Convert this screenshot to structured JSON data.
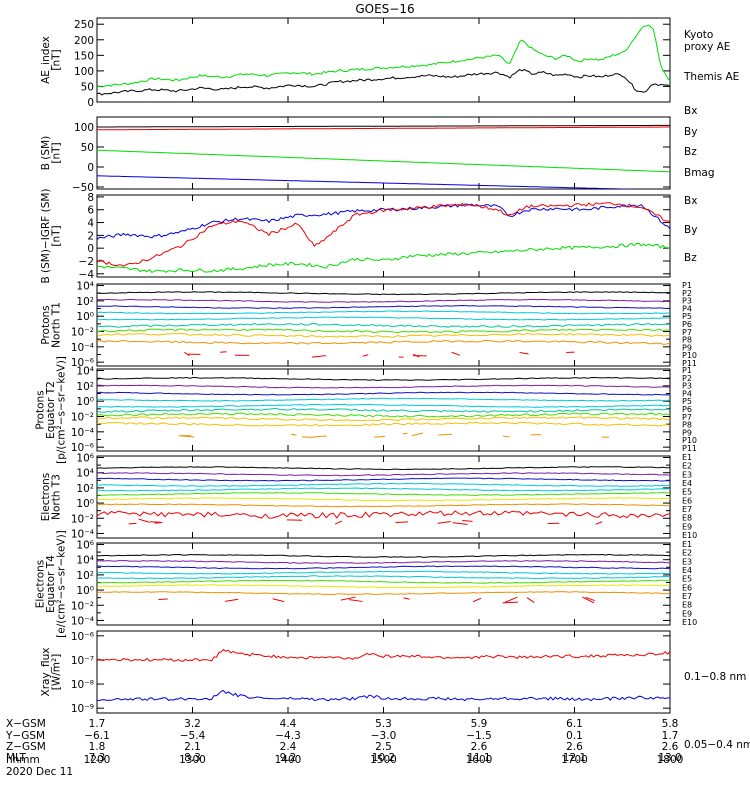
{
  "title": "GOES−16",
  "date_label": "2020 Dec 11",
  "colors": {
    "black": "#000000",
    "red": "#ee0000",
    "green": "#00dd00",
    "blue": "#0000dd",
    "purple": "#7a1fa2",
    "navy": "#1010c8",
    "cyan": "#00c8d8",
    "teal": "#00c8a0",
    "lime": "#44dd00",
    "yellow": "#e8e800",
    "gold": "#f4c000",
    "orange": "#f09000",
    "darkorange": "#e06000"
  },
  "chart_data": [
    {
      "type": "line",
      "id": "ae",
      "ylabel": [
        "AE_index",
        "[nT]"
      ],
      "yscale": "linear",
      "ylim": [
        0,
        270
      ],
      "yticks": [
        0,
        50,
        100,
        150,
        200,
        250
      ],
      "ytick_labels": [
        "0",
        "50",
        "100",
        "150",
        "200",
        "250"
      ],
      "series": [
        {
          "name": "Kyoto proxy AE",
          "label_lines": [
            "Kyoto",
            "proxy AE"
          ],
          "color": "#00dd00",
          "x": [
            0,
            0.03,
            0.06,
            0.1,
            0.14,
            0.18,
            0.22,
            0.26,
            0.3,
            0.34,
            0.38,
            0.42,
            0.46,
            0.5,
            0.54,
            0.58,
            0.62,
            0.66,
            0.7,
            0.72,
            0.74,
            0.76,
            0.78,
            0.8,
            0.82,
            0.84,
            0.86,
            0.88,
            0.9,
            0.92,
            0.94,
            0.955,
            0.97,
            0.985,
            1.0
          ],
          "y": [
            50,
            55,
            60,
            75,
            70,
            85,
            80,
            90,
            85,
            95,
            90,
            100,
            105,
            110,
            115,
            120,
            130,
            140,
            150,
            120,
            200,
            170,
            150,
            140,
            150,
            130,
            140,
            135,
            150,
            160,
            210,
            250,
            240,
            110,
            70
          ]
        },
        {
          "name": "Themis AE",
          "label_lines": [
            "Themis AE"
          ],
          "color": "#000000",
          "x": [
            0,
            0.03,
            0.06,
            0.1,
            0.14,
            0.18,
            0.22,
            0.26,
            0.3,
            0.34,
            0.38,
            0.42,
            0.46,
            0.5,
            0.54,
            0.58,
            0.62,
            0.66,
            0.7,
            0.72,
            0.74,
            0.76,
            0.78,
            0.8,
            0.82,
            0.84,
            0.86,
            0.88,
            0.9,
            0.92,
            0.94,
            0.955,
            0.97,
            0.985,
            1.0
          ],
          "y": [
            25,
            30,
            35,
            40,
            35,
            45,
            40,
            50,
            45,
            55,
            50,
            65,
            70,
            75,
            80,
            85,
            80,
            90,
            95,
            80,
            105,
            90,
            95,
            85,
            90,
            80,
            85,
            80,
            90,
            85,
            40,
            30,
            60,
            55,
            50
          ]
        }
      ]
    },
    {
      "type": "line",
      "id": "bsm",
      "ylabel": [
        "B (SM)",
        "[nT]"
      ],
      "yscale": "linear",
      "ylim": [
        -55,
        125
      ],
      "yticks": [
        -50,
        0,
        50,
        100
      ],
      "ytick_labels": [
        "−50",
        "0",
        "50",
        "100"
      ],
      "series": [
        {
          "name": "Bx",
          "color": "#0000dd",
          "x": [
            0,
            1
          ],
          "y": [
            -22,
            -58
          ]
        },
        {
          "name": "By",
          "color": "#00dd00",
          "x": [
            0,
            1
          ],
          "y": [
            42,
            -12
          ]
        },
        {
          "name": "Bz",
          "color": "#ee0000",
          "x": [
            0,
            1
          ],
          "y": [
            93,
            100
          ]
        },
        {
          "name": "Bmag",
          "color": "#000000",
          "x": [
            0,
            1
          ],
          "y": [
            100,
            104
          ]
        }
      ]
    },
    {
      "type": "line",
      "id": "bdiff",
      "ylabel": [
        "B (SM)−IGRF (SM)",
        "[nT]"
      ],
      "yscale": "linear",
      "ylim": [
        -4.5,
        8.3
      ],
      "yticks": [
        -4,
        -2,
        0,
        2,
        4,
        6,
        8
      ],
      "ytick_labels": [
        "−4",
        "−2",
        "0",
        "2",
        "4",
        "6",
        "8"
      ],
      "series": [
        {
          "name": "Bx",
          "color": "#0000dd",
          "x": [
            0,
            0.05,
            0.1,
            0.15,
            0.2,
            0.25,
            0.3,
            0.35,
            0.4,
            0.45,
            0.5,
            0.55,
            0.6,
            0.65,
            0.7,
            0.72,
            0.75,
            0.8,
            0.85,
            0.9,
            0.95,
            1.0
          ],
          "y": [
            1.5,
            2.2,
            1.8,
            2.6,
            4.0,
            4.6,
            4.2,
            5.1,
            5.3,
            5.8,
            6.0,
            6.2,
            6.5,
            6.8,
            6.5,
            5.0,
            6.0,
            6.2,
            6.0,
            6.5,
            6.8,
            3.0
          ]
        },
        {
          "name": "By",
          "color": "#00dd00",
          "x": [
            0,
            0.05,
            0.1,
            0.15,
            0.2,
            0.25,
            0.3,
            0.35,
            0.4,
            0.45,
            0.5,
            0.55,
            0.6,
            0.65,
            0.7,
            0.75,
            0.8,
            0.85,
            0.9,
            0.95,
            1.0
          ],
          "y": [
            -2.8,
            -3.2,
            -3.6,
            -3.4,
            -3.5,
            -3.2,
            -2.6,
            -2.4,
            -2.9,
            -1.7,
            -1.9,
            -1.2,
            -1.0,
            -0.8,
            -0.6,
            -0.3,
            0.0,
            0.1,
            0.3,
            0.6,
            0.1
          ]
        },
        {
          "name": "Bz",
          "color": "#ee0000",
          "x": [
            0,
            0.05,
            0.1,
            0.15,
            0.2,
            0.25,
            0.3,
            0.35,
            0.38,
            0.42,
            0.45,
            0.5,
            0.55,
            0.6,
            0.65,
            0.7,
            0.72,
            0.75,
            0.8,
            0.85,
            0.9,
            0.95,
            1.0
          ],
          "y": [
            -2.0,
            -2.8,
            -1.4,
            0.5,
            3.5,
            4.3,
            2.2,
            3.8,
            0.2,
            3.0,
            5.2,
            5.9,
            6.2,
            6.6,
            6.8,
            6.0,
            5.0,
            6.5,
            6.6,
            6.8,
            7.0,
            6.4,
            4.0
          ]
        }
      ]
    },
    {
      "type": "line",
      "id": "pn",
      "ylabel": [
        "Protons",
        "North T1"
      ],
      "yscale": "log",
      "ylim": [
        -6.5,
        4.2
      ],
      "yticks": [
        -6,
        -4,
        -2,
        0,
        2,
        4
      ],
      "ytick_labels": [
        "10⁻⁶",
        "10⁻⁴",
        "10⁻²",
        "10⁰",
        "10²",
        "10⁴"
      ],
      "legend": [
        "P1",
        "P2",
        "P3",
        "P4",
        "P5",
        "P6",
        "P7",
        "P8",
        "P9",
        "P10",
        "P11"
      ],
      "series": [
        {
          "name": "P1",
          "color": "#000000",
          "log10": 3.0
        },
        {
          "name": "P2",
          "color": "#7a1fa2",
          "log10": 2.0
        },
        {
          "name": "P3",
          "color": "#1010c8",
          "log10": 1.2
        },
        {
          "name": "P4",
          "color": "#00c8d8",
          "log10": 0.5
        },
        {
          "name": "P5",
          "color": "#00c8d8",
          "log10": -0.3
        },
        {
          "name": "P6",
          "color": "#00c8a0",
          "log10": -1.2
        },
        {
          "name": "P7",
          "color": "#44dd00",
          "log10": -1.9
        },
        {
          "name": "P8",
          "color": "#f4c000",
          "log10": -2.5
        },
        {
          "name": "P9",
          "color": "#f09000",
          "log10": -3.4
        },
        {
          "name": "P10",
          "color": "#ee0000",
          "log10": -5.0,
          "sparse": true
        }
      ]
    },
    {
      "type": "line",
      "id": "pe",
      "ylabel": [
        "Protons",
        "Equator T2",
        "[p/(cm²−s−sr−keV)]"
      ],
      "yscale": "log",
      "ylim": [
        -6.5,
        4.2
      ],
      "yticks": [
        -6,
        -4,
        -2,
        0,
        2,
        4
      ],
      "ytick_labels": [
        "10⁻⁶",
        "10⁻⁴",
        "10⁻²",
        "10⁰",
        "10²",
        "10⁴"
      ],
      "legend": [
        "P1",
        "P2",
        "P3",
        "P4",
        "P5",
        "P6",
        "P7",
        "P8",
        "P9",
        "P10",
        "P11"
      ],
      "series": [
        {
          "name": "P1",
          "color": "#000000",
          "log10": 2.9
        },
        {
          "name": "P2",
          "color": "#7a1fa2",
          "log10": 1.9
        },
        {
          "name": "P3",
          "color": "#1010c8",
          "log10": 1.0
        },
        {
          "name": "P4",
          "color": "#00c8d8",
          "log10": 0.2
        },
        {
          "name": "P5",
          "color": "#00c8d8",
          "log10": -0.6
        },
        {
          "name": "P6",
          "color": "#00c8a0",
          "log10": -1.2
        },
        {
          "name": "P7",
          "color": "#44dd00",
          "log10": -1.8
        },
        {
          "name": "P8",
          "color": "#f4c000",
          "log10": -2.3
        },
        {
          "name": "P9",
          "color": "#f4c000",
          "log10": -3.0
        },
        {
          "name": "P10",
          "color": "#f09000",
          "log10": -4.5,
          "sparse": true
        }
      ]
    },
    {
      "type": "line",
      "id": "en",
      "ylabel": [
        "Electrons",
        "North T3"
      ],
      "yscale": "log",
      "ylim": [
        -4.6,
        6.2
      ],
      "yticks": [
        -4,
        -2,
        0,
        2,
        4,
        6
      ],
      "ytick_labels": [
        "10⁻⁴",
        "10⁻²",
        "10⁰",
        "10²",
        "10⁴",
        "10⁶"
      ],
      "legend": [
        "E1",
        "E2",
        "E3",
        "E4",
        "E5",
        "E6",
        "E7",
        "E8",
        "E9",
        "E10"
      ],
      "series": [
        {
          "name": "E1",
          "color": "#000000",
          "log10": 4.6
        },
        {
          "name": "E2",
          "color": "#7a1fa2",
          "log10": 3.8
        },
        {
          "name": "E3",
          "color": "#1010c8",
          "log10": 3.1
        },
        {
          "name": "E4",
          "color": "#00c8d8",
          "log10": 2.4
        },
        {
          "name": "E5",
          "color": "#00c8d8",
          "log10": 1.8
        },
        {
          "name": "E6",
          "color": "#44dd00",
          "log10": 1.2
        },
        {
          "name": "E7",
          "color": "#e8e800",
          "log10": 0.5
        },
        {
          "name": "E8",
          "color": "#f09000",
          "log10": -0.3
        },
        {
          "name": "E9",
          "color": "#ee0000",
          "log10": -1.5,
          "noisy": true
        },
        {
          "name": "E10",
          "color": "#ee0000",
          "log10": -2.5,
          "sparse": true
        }
      ]
    },
    {
      "type": "line",
      "id": "ee",
      "ylabel": [
        "Electrons",
        "Equator T4",
        "[e/(cm²−s−sr−keV)]"
      ],
      "yscale": "log",
      "ylim": [
        -4.6,
        6.2
      ],
      "yticks": [
        -4,
        -2,
        0,
        2,
        4,
        6
      ],
      "ytick_labels": [
        "10⁻⁴",
        "10⁻²",
        "10⁰",
        "10²",
        "10⁴",
        "10⁶"
      ],
      "legend": [
        "E1",
        "E2",
        "E3",
        "E4",
        "E5",
        "E6",
        "E7",
        "E8",
        "E9",
        "E10"
      ],
      "series": [
        {
          "name": "E1",
          "color": "#000000",
          "log10": 4.5
        },
        {
          "name": "E2",
          "color": "#7a1fa2",
          "log10": 3.7
        },
        {
          "name": "E3",
          "color": "#1010c8",
          "log10": 3.0
        },
        {
          "name": "E4",
          "color": "#00c8d8",
          "log10": 2.3
        },
        {
          "name": "E5",
          "color": "#00c8d8",
          "log10": 1.7
        },
        {
          "name": "E6",
          "color": "#44dd00",
          "log10": 1.1
        },
        {
          "name": "E7",
          "color": "#e8e800",
          "log10": 0.5
        },
        {
          "name": "E8",
          "color": "#f09000",
          "log10": -0.4
        },
        {
          "name": "E9",
          "color": "#ee0000",
          "log10": -1.3,
          "sparse": true
        }
      ]
    },
    {
      "type": "line",
      "id": "xray",
      "ylabel": [
        "Xray_flux",
        "[W/m²]"
      ],
      "yscale": "log",
      "ylim": [
        -9.2,
        -5.8
      ],
      "yticks": [
        -9,
        -8,
        -7,
        -6
      ],
      "ytick_labels": [
        "10⁻⁹",
        "10⁻⁸",
        "10⁻⁷",
        "10⁻⁶"
      ],
      "series": [
        {
          "name": "0.1−0.8 nm",
          "color": "#ee0000",
          "x": [
            0,
            0.2,
            0.22,
            0.25,
            0.3,
            0.35,
            0.4,
            0.45,
            0.48,
            0.5,
            0.55,
            0.6,
            0.65,
            0.7,
            0.75,
            0.8,
            0.85,
            0.9,
            0.95,
            1.0
          ],
          "y": [
            -7.0,
            -7.0,
            -6.6,
            -6.75,
            -6.85,
            -6.9,
            -6.9,
            -6.95,
            -6.7,
            -6.85,
            -6.85,
            -6.9,
            -6.9,
            -6.85,
            -6.9,
            -6.85,
            -6.85,
            -6.8,
            -6.8,
            -6.7
          ]
        },
        {
          "name": "0.05−0.4 nm",
          "color": "#0000dd",
          "x": [
            0,
            0.2,
            0.22,
            0.25,
            0.3,
            0.35,
            0.4,
            0.45,
            0.48,
            0.5,
            0.55,
            0.6,
            0.65,
            0.7,
            0.75,
            0.8,
            0.85,
            0.9,
            0.95,
            1.0
          ],
          "y": [
            -8.65,
            -8.6,
            -8.3,
            -8.5,
            -8.6,
            -8.6,
            -8.65,
            -8.6,
            -8.5,
            -8.6,
            -8.6,
            -8.6,
            -8.65,
            -8.6,
            -8.6,
            -8.6,
            -8.65,
            -8.6,
            -8.55,
            -8.6
          ]
        }
      ]
    }
  ],
  "orbit_table": {
    "row_labels": [
      "X−GSM",
      "Y−GSM",
      "Z−GSM",
      "MLT",
      "hhmm"
    ],
    "columns": [
      [
        "1.7",
        "−6.1",
        "1.8",
        "7.3",
        "1200"
      ],
      [
        "3.2",
        "−5.4",
        "2.1",
        "8.3",
        "1300"
      ],
      [
        "4.4",
        "−4.3",
        "2.4",
        "9.2",
        "1400"
      ],
      [
        "5.3",
        "−3.0",
        "2.5",
        "10.2",
        "1500"
      ],
      [
        "5.9",
        "−1.5",
        "2.6",
        "11.1",
        "1600"
      ],
      [
        "6.1",
        "0.1",
        "2.6",
        "12.1",
        "1700"
      ],
      [
        "5.8",
        "1.7",
        "2.6",
        "13.0",
        "1800"
      ]
    ]
  }
}
